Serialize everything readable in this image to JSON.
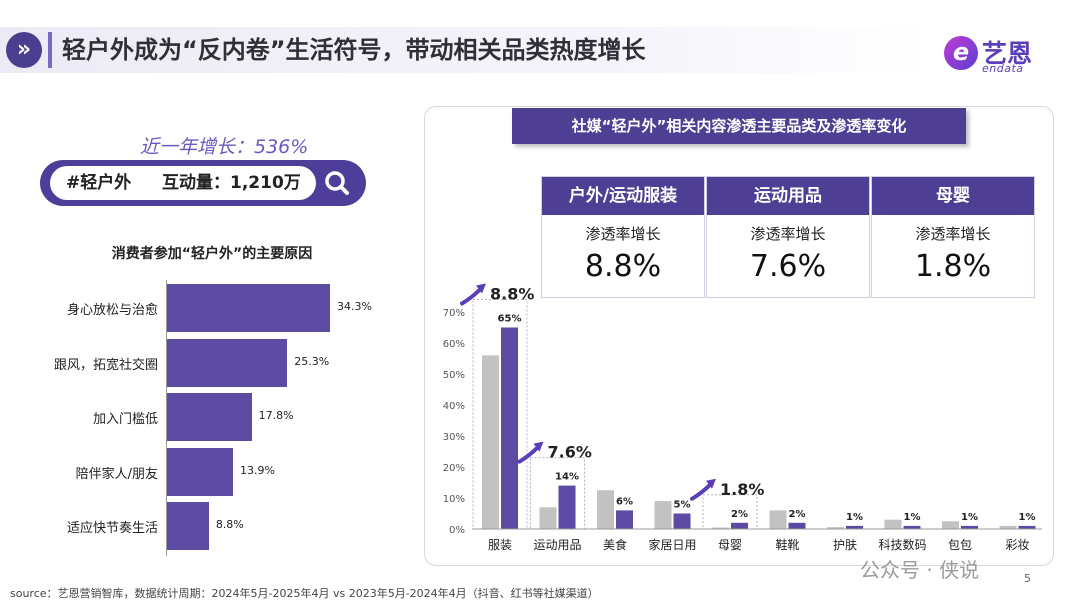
{
  "header": {
    "title": "轻户外成为“反内卷”生活符号，带动相关品类热度增长",
    "icon": "double-chevron-right-icon",
    "logo_cn": "艺恩",
    "logo_en": "endata"
  },
  "left": {
    "growth_label": "近一年增长：536%",
    "search": {
      "tag": "#轻户外",
      "metric": "互动量：1,210万",
      "icon": "search-icon"
    }
  },
  "colors": {
    "primary": "#4e3f94",
    "bar_purple": "#5d4aa2",
    "bar_gray": "#c2c2c2",
    "accent": "#6b58c4"
  },
  "chart_data": [
    {
      "type": "bar",
      "orientation": "horizontal",
      "title": "消费者参加“轻户外”的主要原因",
      "categories": [
        "身心放松与治愈",
        "跟风，拓宽社交圈",
        "加入门槛低",
        "陪伴家人/朋友",
        "适应快节奏生活"
      ],
      "values": [
        34.3,
        25.3,
        17.8,
        13.9,
        8.8
      ],
      "value_labels": [
        "34.3%",
        "25.3%",
        "17.8%",
        "13.9%",
        "8.8%"
      ],
      "xlim": [
        0,
        34.3
      ]
    },
    {
      "type": "bar",
      "title": "社媒“轻户外”相关内容渗透主要品类及渗透率变化",
      "categories": [
        "服装",
        "运动用品",
        "美食",
        "家居日用",
        "母婴",
        "鞋靴",
        "护肤",
        "科技数码",
        "包包",
        "彩妆"
      ],
      "series": [
        {
          "values": [
            56,
            7,
            12.5,
            9,
            0.5,
            6,
            0.6,
            3,
            2.5,
            1
          ],
          "color": "#c2c2c2"
        },
        {
          "values": [
            65,
            14,
            6,
            5,
            2,
            2,
            1,
            1,
            1,
            1
          ],
          "color": "#5d4aa2",
          "labels": [
            "65%",
            "14%",
            "6%",
            "5%",
            "2%",
            "2%",
            "1%",
            "1%",
            "1%",
            "1%"
          ]
        }
      ],
      "yticks": [
        "0%",
        "10%",
        "20%",
        "30%",
        "40%",
        "50%",
        "60%",
        "70%"
      ],
      "ylim": [
        0,
        70
      ],
      "grid": false,
      "annotations": [
        {
          "category": "服装",
          "text": "8.8%"
        },
        {
          "category": "运动用品",
          "text": "7.6%"
        },
        {
          "category": "母婴",
          "text": "1.8%"
        }
      ],
      "highlight_cards": [
        {
          "name": "户外/运动服装",
          "sub": "渗透率增长",
          "value": "8.8%"
        },
        {
          "name": "运动用品",
          "sub": "渗透率增长",
          "value": "7.6%"
        },
        {
          "name": "母婴",
          "sub": "渗透率增长",
          "value": "1.8%"
        }
      ]
    }
  ],
  "footer": {
    "source": "source：艺恩营销智库，数据统计周期：2024年5月-2025年4月 vs 2023年5月-2024年4月（抖音、红书等社媒渠道）",
    "watermark": "公众号 · 侠说",
    "page": "5"
  }
}
